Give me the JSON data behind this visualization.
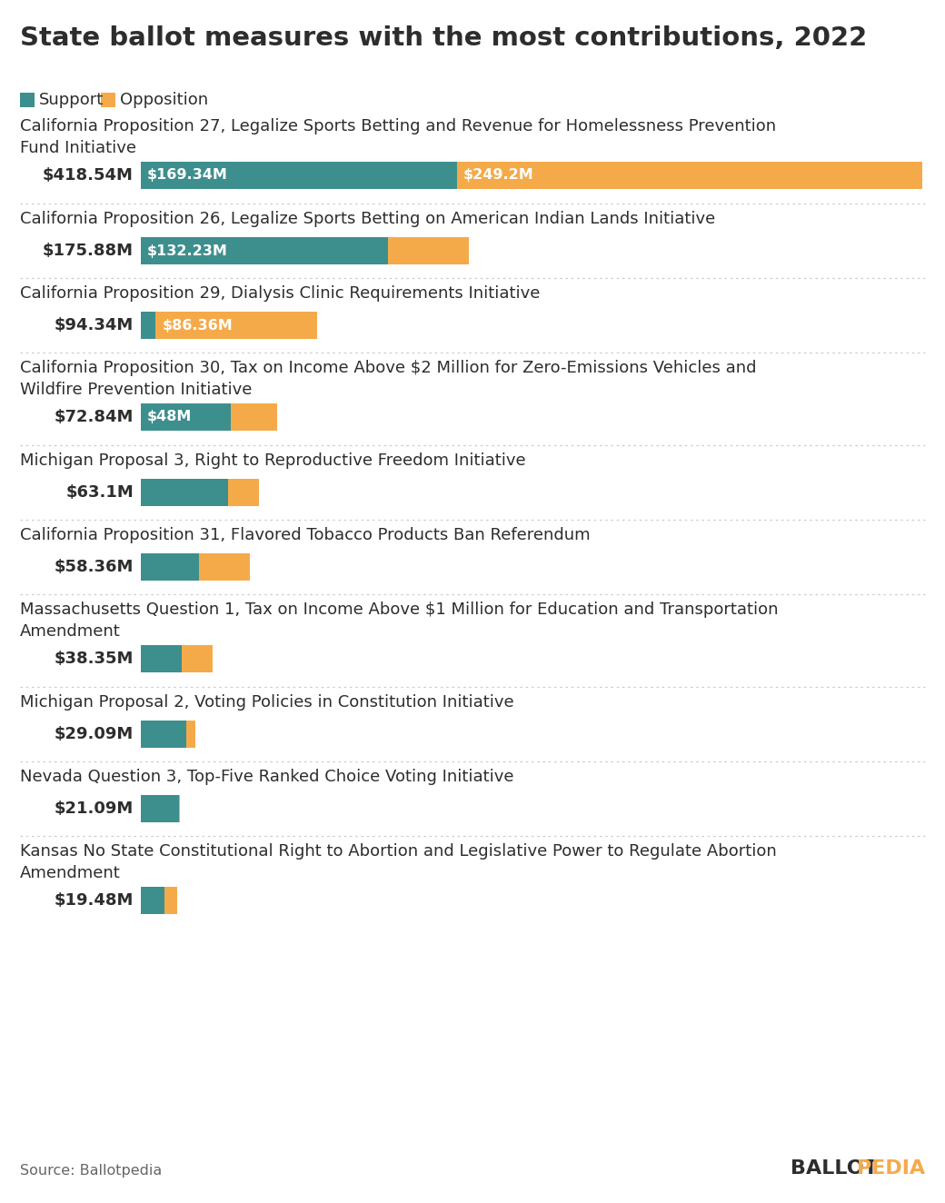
{
  "title": "State ballot measures with the most contributions, 2022",
  "support_color": "#3d8f8e",
  "opposition_color": "#f5aa4a",
  "background_color": "#ffffff",
  "source_text": "Source: Ballotpedia",
  "measures": [
    {
      "title_line1": "California Proposition 27, Legalize Sports Betting and Revenue for Homelessness Prevention",
      "title_line2": "Fund Initiative",
      "total": 418.54,
      "support": 169.34,
      "opposition": 249.2,
      "total_label": "$418.54M",
      "support_label": "$169.34M",
      "opposition_label": "$249.2M",
      "two_line_title": true
    },
    {
      "title_line1": "California Proposition 26, Legalize Sports Betting on American Indian Lands Initiative",
      "title_line2": "",
      "total": 175.88,
      "support": 132.23,
      "opposition": 43.65,
      "total_label": "$175.88M",
      "support_label": "$132.23M",
      "opposition_label": "",
      "two_line_title": false
    },
    {
      "title_line1": "California Proposition 29, Dialysis Clinic Requirements Initiative",
      "title_line2": "",
      "total": 94.34,
      "support": 7.98,
      "opposition": 86.36,
      "total_label": "$94.34M",
      "support_label": "",
      "opposition_label": "$86.36M",
      "two_line_title": false
    },
    {
      "title_line1": "California Proposition 30, Tax on Income Above $2 Million for Zero-Emissions Vehicles and",
      "title_line2": "Wildfire Prevention Initiative",
      "total": 72.84,
      "support": 48.0,
      "opposition": 24.84,
      "total_label": "$72.84M",
      "support_label": "$48M",
      "opposition_label": "",
      "two_line_title": true
    },
    {
      "title_line1": "Michigan Proposal 3, Right to Reproductive Freedom Initiative",
      "title_line2": "",
      "total": 63.1,
      "support": 46.5,
      "opposition": 16.6,
      "total_label": "$63.1M",
      "support_label": "",
      "opposition_label": "",
      "two_line_title": false
    },
    {
      "title_line1": "California Proposition 31, Flavored Tobacco Products Ban Referendum",
      "title_line2": "",
      "total": 58.36,
      "support": 31.0,
      "opposition": 27.36,
      "total_label": "$58.36M",
      "support_label": "",
      "opposition_label": "",
      "two_line_title": false
    },
    {
      "title_line1": "Massachusetts Question 1, Tax on Income Above $1 Million for Education and Transportation",
      "title_line2": "Amendment",
      "total": 38.35,
      "support": 22.0,
      "opposition": 16.35,
      "total_label": "$38.35M",
      "support_label": "",
      "opposition_label": "",
      "two_line_title": true
    },
    {
      "title_line1": "Michigan Proposal 2, Voting Policies in Constitution Initiative",
      "title_line2": "",
      "total": 29.09,
      "support": 24.5,
      "opposition": 4.59,
      "total_label": "$29.09M",
      "support_label": "",
      "opposition_label": "",
      "two_line_title": false
    },
    {
      "title_line1": "Nevada Question 3, Top-Five Ranked Choice Voting Initiative",
      "title_line2": "",
      "total": 21.09,
      "support": 20.5,
      "opposition": 0.59,
      "total_label": "$21.09M",
      "support_label": "",
      "opposition_label": "",
      "two_line_title": false
    },
    {
      "title_line1": "Kansas No State Constitutional Right to Abortion and Legislative Power to Regulate Abortion",
      "title_line2": "Amendment",
      "total": 19.48,
      "support": 12.5,
      "opposition": 6.98,
      "total_label": "$19.48M",
      "support_label": "",
      "opposition_label": "",
      "two_line_title": true
    }
  ],
  "max_total": 418.54,
  "title_fontsize": 21,
  "measure_fontsize": 13,
  "total_label_fontsize": 13,
  "bar_label_fontsize": 11.5,
  "legend_fontsize": 13
}
